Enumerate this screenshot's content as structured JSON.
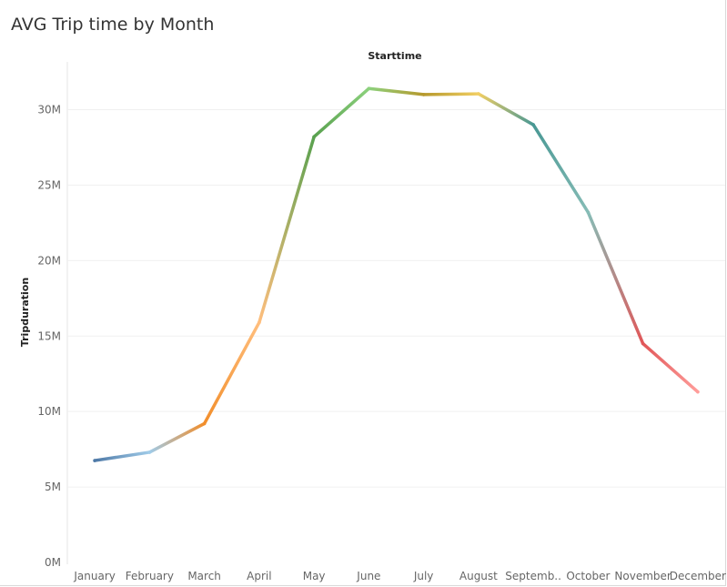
{
  "dashboard": {
    "title": "AVG Trip time by Month"
  },
  "chart_data": {
    "type": "line",
    "title": "AVG Trip time by Month",
    "column_header": "Starttime",
    "xlabel": "",
    "ylabel": "Tripduration",
    "categories": [
      "January",
      "February",
      "March",
      "April",
      "May",
      "June",
      "July",
      "August",
      "September",
      "October",
      "November",
      "December"
    ],
    "category_labels": [
      "January",
      "February",
      "March",
      "April",
      "May",
      "June",
      "July",
      "August",
      "Septemb..",
      "October",
      "November",
      "December"
    ],
    "values": [
      6.75,
      7.3,
      9.2,
      15.9,
      28.2,
      31.4,
      31.0,
      31.05,
      29.0,
      23.2,
      14.5,
      11.3
    ],
    "value_unit": "M",
    "ylim": [
      0,
      33
    ],
    "yticks": [
      0,
      5,
      10,
      15,
      20,
      25,
      30
    ],
    "ytick_labels": [
      "0M",
      "5M",
      "10M",
      "15M",
      "20M",
      "25M",
      "30M"
    ],
    "grid": true,
    "legend": "none",
    "colors": [
      "#4e79a7",
      "#a0cbe8",
      "#f28e2b",
      "#ffbe7d",
      "#59a14f",
      "#8cd17d",
      "#b6992d",
      "#f1ce63",
      "#499894",
      "#86bcb6",
      "#e15759",
      "#ff9d9a"
    ]
  }
}
